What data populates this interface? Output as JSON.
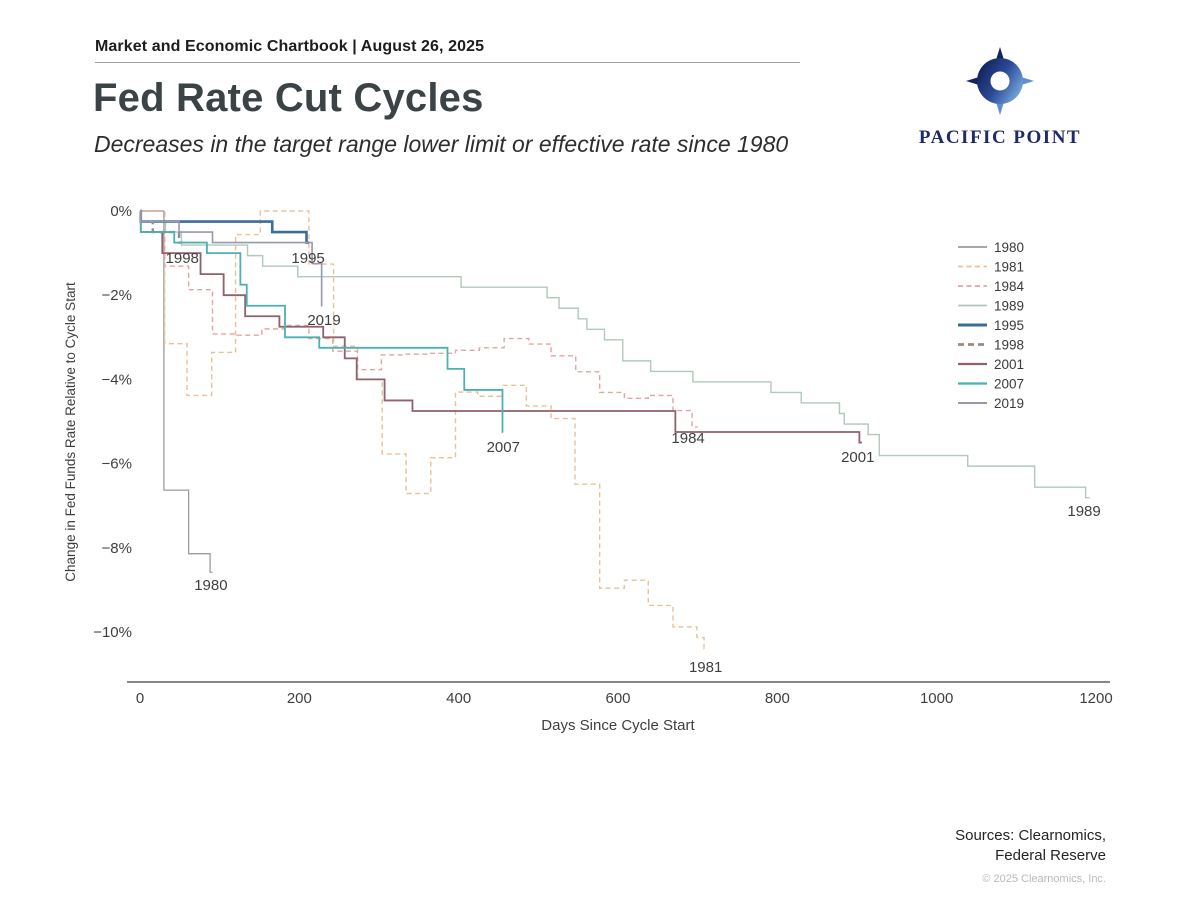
{
  "header": {
    "text": "Market and Economic Chartbook | August 26, 2025"
  },
  "title": "Fed Rate Cut Cycles",
  "subtitle": "Decreases in the target range lower limit or effective rate since 1980",
  "logo": {
    "name": "PACIFIC POINT",
    "navy": "#1d2a6b",
    "light_blue": "#7fb2e2"
  },
  "footer": {
    "sources_line1": "Sources: Clearnomics,",
    "sources_line2": "Federal Reserve",
    "copyright": "© 2025 Clearnomics, Inc."
  },
  "chart_data": {
    "type": "line",
    "step": true,
    "xlabel": "Days Since Cycle Start",
    "ylabel": "Change in Fed Funds Rate Relative to Cycle Start",
    "xlim": [
      0,
      1200
    ],
    "ylim": [
      -11.2,
      0.35
    ],
    "xticks": [
      0,
      200,
      400,
      600,
      800,
      1000,
      1200
    ],
    "yticks": [
      0,
      -2,
      -4,
      -6,
      -8,
      -10
    ],
    "ytick_suffix": "%",
    "grid": false,
    "legend_position": "right",
    "axis_color": "#3f3f3f",
    "tick_font_px": 15,
    "series": [
      {
        "name": "1980",
        "color": "#9c9c9c",
        "width": 1.3,
        "dash": null,
        "end_day": 91,
        "points": [
          [
            0,
            0
          ],
          [
            30,
            -6.63
          ],
          [
            61,
            -8.14
          ],
          [
            88,
            -8.58
          ]
        ]
      },
      {
        "name": "1981",
        "color": "#eac196",
        "width": 1.4,
        "dash": "5 3.5",
        "end_day": 712,
        "points": [
          [
            0,
            0
          ],
          [
            31,
            -3.15
          ],
          [
            59,
            -4.38
          ],
          [
            90,
            -3.36
          ],
          [
            120,
            -0.56
          ],
          [
            151,
            0
          ],
          [
            212,
            -1.26
          ],
          [
            243,
            -3.21
          ],
          [
            273,
            -4.0
          ],
          [
            304,
            -5.77
          ],
          [
            334,
            -6.71
          ],
          [
            365,
            -5.86
          ],
          [
            396,
            -4.3
          ],
          [
            424,
            -4.4
          ],
          [
            455,
            -4.14
          ],
          [
            485,
            -4.63
          ],
          [
            516,
            -4.93
          ],
          [
            546,
            -6.49
          ],
          [
            577,
            -8.96
          ],
          [
            608,
            -8.77
          ],
          [
            638,
            -9.37
          ],
          [
            669,
            -9.88
          ],
          [
            699,
            -10.13
          ],
          [
            708,
            -10.4
          ]
        ]
      },
      {
        "name": "1984",
        "color": "#e7a2a2",
        "width": 1.4,
        "dash": "5 3.5",
        "end_day": 700,
        "points": [
          [
            0,
            0
          ],
          [
            31,
            -1.31
          ],
          [
            61,
            -1.87
          ],
          [
            91,
            -2.92
          ],
          [
            122,
            -2.95
          ],
          [
            153,
            -2.8
          ],
          [
            181,
            -2.72
          ],
          [
            212,
            -3.03
          ],
          [
            242,
            -3.33
          ],
          [
            273,
            -3.77
          ],
          [
            303,
            -3.42
          ],
          [
            334,
            -3.4
          ],
          [
            365,
            -3.38
          ],
          [
            396,
            -3.31
          ],
          [
            426,
            -3.25
          ],
          [
            457,
            -3.03
          ],
          [
            488,
            -3.16
          ],
          [
            516,
            -3.44
          ],
          [
            547,
            -3.82
          ],
          [
            577,
            -4.31
          ],
          [
            608,
            -4.45
          ],
          [
            638,
            -4.38
          ],
          [
            669,
            -4.74
          ],
          [
            693,
            -5.13
          ]
        ]
      },
      {
        "name": "1989",
        "color": "#b0c9ba",
        "width": 1.4,
        "dash": null,
        "end_day": 1192,
        "points": [
          [
            0,
            0
          ],
          [
            1,
            -0.25
          ],
          [
            32,
            -0.5
          ],
          [
            52,
            -0.81
          ],
          [
            135,
            -1.06
          ],
          [
            154,
            -1.31
          ],
          [
            198,
            -1.56
          ],
          [
            403,
            -1.81
          ],
          [
            511,
            -2.06
          ],
          [
            526,
            -2.31
          ],
          [
            550,
            -2.56
          ],
          [
            561,
            -2.81
          ],
          [
            583,
            -3.06
          ],
          [
            606,
            -3.56
          ],
          [
            641,
            -3.81
          ],
          [
            694,
            -4.06
          ],
          [
            792,
            -4.31
          ],
          [
            830,
            -4.56
          ],
          [
            878,
            -4.81
          ],
          [
            884,
            -5.06
          ],
          [
            914,
            -5.31
          ],
          [
            928,
            -5.81
          ],
          [
            1039,
            -6.06
          ],
          [
            1123,
            -6.56
          ],
          [
            1187,
            -6.81
          ]
        ]
      },
      {
        "name": "1995",
        "color": "#3b6d98",
        "width": 2.6,
        "dash": null,
        "end_day": 212,
        "points": [
          [
            0,
            0
          ],
          [
            1,
            -0.25
          ],
          [
            166,
            -0.5
          ],
          [
            209,
            -0.75
          ]
        ]
      },
      {
        "name": "1998",
        "color": "#968c84",
        "width": 2.4,
        "dash": "6 4",
        "end_day": 52,
        "points": [
          [
            0,
            0
          ],
          [
            1,
            -0.25
          ],
          [
            16,
            -0.5
          ],
          [
            49,
            -0.75
          ]
        ]
      },
      {
        "name": "2001",
        "color": "#8f616b",
        "width": 1.8,
        "dash": null,
        "end_day": 906,
        "points": [
          [
            0,
            0
          ],
          [
            1,
            -0.5
          ],
          [
            28,
            -1.0
          ],
          [
            76,
            -1.5
          ],
          [
            105,
            -2.0
          ],
          [
            132,
            -2.5
          ],
          [
            175,
            -2.75
          ],
          [
            230,
            -3.0
          ],
          [
            257,
            -3.5
          ],
          [
            272,
            -4.0
          ],
          [
            307,
            -4.5
          ],
          [
            342,
            -4.75
          ],
          [
            672,
            -5.25
          ],
          [
            903,
            -5.5
          ]
        ]
      },
      {
        "name": "2007",
        "color": "#4db1b1",
        "width": 1.8,
        "dash": null,
        "end_day": 456,
        "points": [
          [
            0,
            0
          ],
          [
            1,
            -0.5
          ],
          [
            43,
            -0.75
          ],
          [
            84,
            -1.0
          ],
          [
            126,
            -1.75
          ],
          [
            134,
            -2.25
          ],
          [
            182,
            -3.0
          ],
          [
            225,
            -3.25
          ],
          [
            386,
            -3.75
          ],
          [
            407,
            -4.25
          ],
          [
            455,
            -5.25
          ]
        ]
      },
      {
        "name": "2019",
        "color": "#9697b2",
        "width": 1.6,
        "dash": null,
        "end_day": 229,
        "points": [
          [
            0,
            0
          ],
          [
            1,
            -0.25
          ],
          [
            49,
            -0.5
          ],
          [
            91,
            -0.75
          ],
          [
            216,
            -1.25
          ],
          [
            228,
            -2.25
          ]
        ]
      }
    ],
    "annotations": [
      {
        "label": "1998",
        "day": 53,
        "value": -1.12
      },
      {
        "label": "1995",
        "day": 211,
        "value": -1.12
      },
      {
        "label": "2019",
        "day": 231,
        "value": -2.59
      },
      {
        "label": "2007",
        "day": 456,
        "value": -5.61
      },
      {
        "label": "1984",
        "day": 688,
        "value": -5.39
      },
      {
        "label": "2001",
        "day": 901,
        "value": -5.84
      },
      {
        "label": "1989",
        "day": 1185,
        "value": -7.13
      },
      {
        "label": "1980",
        "day": 89,
        "value": -8.88
      },
      {
        "label": "1981",
        "day": 710,
        "value": -10.83
      }
    ]
  }
}
